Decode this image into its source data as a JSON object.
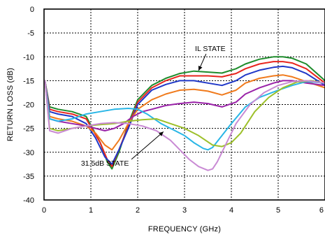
{
  "chart_data": {
    "type": "line",
    "xlabel": "FREQUENCY (GHz)",
    "ylabel": "RETURN LOSS (dB)",
    "xlim": [
      0,
      6
    ],
    "ylim": [
      -40,
      0
    ],
    "xticks": [
      "0",
      "1",
      "2",
      "3",
      "4",
      "5",
      "6"
    ],
    "yticks": [
      "0",
      "-5",
      "-10",
      "-15",
      "-20",
      "-25",
      "-30",
      "-35",
      "-40"
    ],
    "grid": true,
    "annotations": [
      {
        "text": "IL STATE",
        "x": 3.55,
        "y": -8.8,
        "arrow_to": [
          3.3,
          -12.9
        ]
      },
      {
        "text": "31.5dB STATE",
        "x": 1.3,
        "y": -32.8,
        "arrow_to": [
          2.55,
          -25.7
        ]
      }
    ],
    "series": [
      {
        "color": "#1e8c2c",
        "x": [
          0.02,
          0.12,
          0.3,
          0.6,
          0.9,
          1.2,
          1.35,
          1.45,
          1.6,
          1.8,
          2.0,
          2.3,
          2.6,
          2.9,
          3.2,
          3.5,
          3.8,
          4.1,
          4.3,
          4.6,
          4.9,
          5.1,
          5.3,
          5.6,
          6.0
        ],
        "y": [
          -15,
          -20.5,
          -21,
          -21.5,
          -22.5,
          -28,
          -32,
          -33.5,
          -30,
          -24,
          -19,
          -16,
          -14.5,
          -13.5,
          -13,
          -13.2,
          -13.4,
          -12.5,
          -11.5,
          -10.5,
          -10,
          -10,
          -10.3,
          -11.5,
          -15
        ]
      },
      {
        "color": "#e8251e",
        "x": [
          0.02,
          0.12,
          0.3,
          0.6,
          0.9,
          1.2,
          1.35,
          1.45,
          1.6,
          1.8,
          2.0,
          2.3,
          2.6,
          2.9,
          3.2,
          3.5,
          3.8,
          4.1,
          4.3,
          4.6,
          4.9,
          5.1,
          5.3,
          5.6,
          6.0
        ],
        "y": [
          -15,
          -21,
          -21.5,
          -22,
          -23,
          -28,
          -31.5,
          -33,
          -29.5,
          -24.5,
          -19.5,
          -16.5,
          -15,
          -14,
          -14,
          -14,
          -14.2,
          -13.5,
          -12.5,
          -11.5,
          -11,
          -11,
          -11.3,
          -12.5,
          -15.5
        ]
      },
      {
        "color": "#2038c8",
        "x": [
          0.02,
          0.12,
          0.3,
          0.6,
          0.9,
          1.1,
          1.3,
          1.45,
          1.6,
          1.8,
          2.0,
          2.3,
          2.6,
          2.9,
          3.2,
          3.5,
          3.8,
          4.1,
          4.3,
          4.6,
          4.9,
          5.1,
          5.3,
          5.6,
          6.0
        ],
        "y": [
          -15,
          -21.5,
          -22,
          -22.5,
          -24,
          -27,
          -31,
          -32.5,
          -29.5,
          -25,
          -20,
          -17,
          -15.8,
          -15,
          -15,
          -15.5,
          -16,
          -15,
          -13.8,
          -12.8,
          -12.2,
          -12,
          -12.3,
          -13.5,
          -16
        ]
      },
      {
        "color": "#f07a1c",
        "x": [
          0.02,
          0.12,
          0.3,
          0.6,
          0.9,
          1.1,
          1.3,
          1.45,
          1.6,
          1.8,
          2.0,
          2.3,
          2.6,
          2.9,
          3.2,
          3.5,
          3.8,
          4.1,
          4.3,
          4.6,
          4.9,
          5.1,
          5.3,
          5.6,
          6.0
        ],
        "y": [
          -15,
          -22.5,
          -23,
          -23.5,
          -24.5,
          -26,
          -28.5,
          -29.5,
          -27.5,
          -24,
          -21,
          -19,
          -17.8,
          -17,
          -16.8,
          -17.2,
          -18,
          -17,
          -15.5,
          -14.5,
          -14,
          -13.8,
          -14.2,
          -15.2,
          -16.5
        ]
      },
      {
        "color": "#9a22a8",
        "x": [
          0.02,
          0.12,
          0.3,
          0.6,
          0.9,
          1.1,
          1.3,
          1.5,
          1.7,
          1.9,
          2.1,
          2.3,
          2.6,
          2.9,
          3.2,
          3.5,
          3.8,
          4.1,
          4.3,
          4.6,
          4.9,
          5.1,
          5.3,
          5.6,
          6.0
        ],
        "y": [
          -15,
          -23,
          -23.5,
          -24,
          -24.5,
          -25,
          -25.5,
          -25,
          -24,
          -22.5,
          -21.5,
          -21,
          -20.2,
          -19.8,
          -19.5,
          -19.8,
          -20.5,
          -19.5,
          -17.8,
          -16.5,
          -15.5,
          -15,
          -15,
          -15.5,
          -16
        ]
      },
      {
        "color": "#29b6e6",
        "x": [
          0.02,
          0.12,
          0.3,
          0.6,
          0.9,
          1.2,
          1.5,
          1.8,
          2.0,
          2.2,
          2.5,
          2.8,
          3.0,
          3.2,
          3.4,
          3.5,
          3.6,
          3.8,
          4.0,
          4.3,
          4.6,
          5.0,
          5.3,
          5.6,
          6.0
        ],
        "y": [
          -15,
          -23,
          -23.5,
          -23,
          -22,
          -21.5,
          -21,
          -20.8,
          -21,
          -22,
          -24,
          -25.5,
          -26.5,
          -28,
          -29.2,
          -29.5,
          -29,
          -26.5,
          -24,
          -20.5,
          -18.5,
          -17,
          -16,
          -15.2,
          -15.5
        ]
      },
      {
        "color": "#9dc02a",
        "x": [
          0.02,
          0.12,
          0.3,
          0.6,
          0.9,
          1.2,
          1.5,
          1.8,
          2.1,
          2.4,
          2.7,
          3.0,
          3.3,
          3.6,
          3.8,
          4.0,
          4.2,
          4.5,
          4.8,
          5.1,
          5.4,
          5.7,
          6.0
        ],
        "y": [
          -15,
          -25,
          -25.5,
          -25,
          -24.5,
          -24.2,
          -24,
          -23.5,
          -23.2,
          -23,
          -24,
          -25,
          -26.5,
          -28.5,
          -28.8,
          -28,
          -26,
          -21.5,
          -18.5,
          -16.5,
          -15.3,
          -15,
          -15.5
        ]
      },
      {
        "color": "#c98ad4",
        "x": [
          0.02,
          0.12,
          0.3,
          0.6,
          0.9,
          1.2,
          1.5,
          1.8,
          2.1,
          2.4,
          2.7,
          2.9,
          3.1,
          3.3,
          3.5,
          3.6,
          3.7,
          3.9,
          4.1,
          4.4,
          4.7,
          5.0,
          5.3,
          5.6,
          6.0
        ],
        "y": [
          -15,
          -25.5,
          -26,
          -25,
          -24.5,
          -24,
          -23.8,
          -24,
          -24.5,
          -25.5,
          -27.5,
          -29.5,
          -31.5,
          -33,
          -33.8,
          -33.5,
          -32,
          -28,
          -24,
          -20,
          -17.5,
          -16,
          -15.2,
          -15,
          -15.5
        ]
      }
    ]
  }
}
